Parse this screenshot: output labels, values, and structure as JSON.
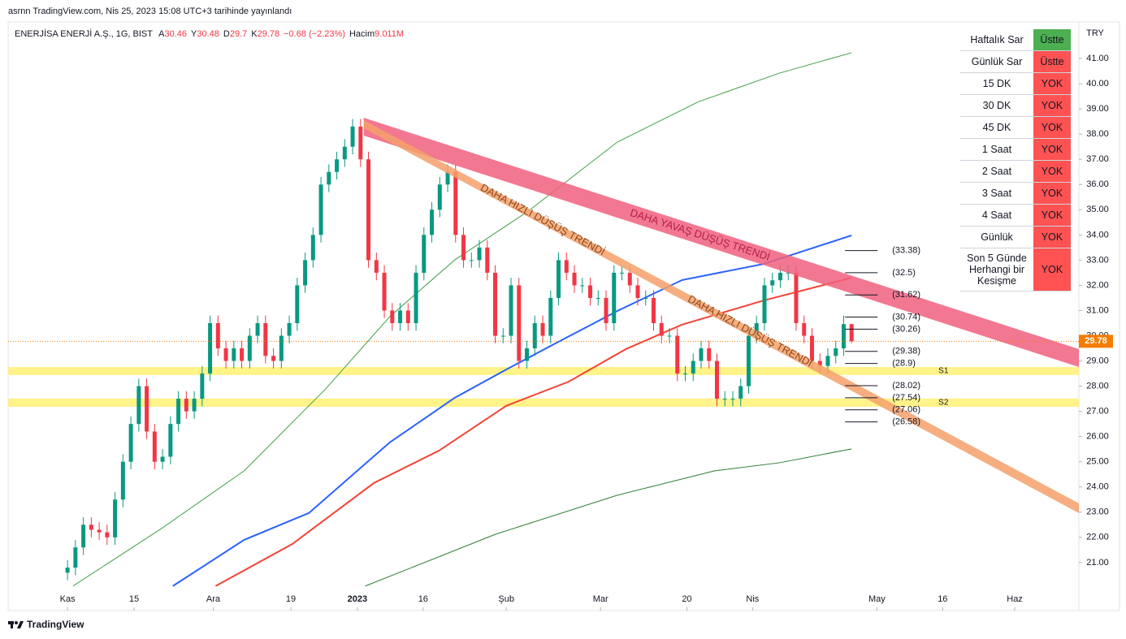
{
  "chart_data": {
    "type": "candlestick",
    "publisher": "asrnn TradingView.com, Nis 25, 2023 15:08 UTC+3 tarihinde yayınlandı",
    "symbol": "ENERJİSA ENERJİ A.Ş., 1G, BIST",
    "legend_letters": [
      "A",
      "Y",
      "D",
      "K"
    ],
    "change": "−0.68 (−2.23%)",
    "volume_label": "Hacim",
    "volume": "9.011M",
    "currency": "TRY",
    "brand": "TradingView",
    "up_color": "#089981",
    "down_color": "#f23645",
    "xlim": [
      -7.5,
      127.7
    ],
    "ylim": [
      19.9,
      42.42
    ],
    "xticks": [
      {
        "value": 0,
        "label": "Kas"
      },
      {
        "value": 8.4,
        "label": "15"
      },
      {
        "value": 18.4,
        "label": "Ara"
      },
      {
        "value": 28.2,
        "label": "19"
      },
      {
        "value": 36.6,
        "label": "2023"
      },
      {
        "value": 44.9,
        "label": "16"
      },
      {
        "value": 55.4,
        "label": "Şub"
      },
      {
        "value": 67.3,
        "label": "Mar"
      },
      {
        "value": 78.2,
        "label": "20"
      },
      {
        "value": 86.5,
        "label": "Nis"
      },
      {
        "value": 102.2,
        "label": "May"
      },
      {
        "value": 110.5,
        "label": "16"
      },
      {
        "value": 119.6,
        "label": "Haz"
      }
    ],
    "yticks": [
      {
        "value": 21,
        "label": "21.00"
      },
      {
        "value": 22,
        "label": "22.00"
      },
      {
        "value": 23,
        "label": "23.00"
      },
      {
        "value": 24,
        "label": "24.00"
      },
      {
        "value": 25,
        "label": "25.00"
      },
      {
        "value": 26,
        "label": "26.00"
      },
      {
        "value": 27,
        "label": "27.00"
      },
      {
        "value": 28,
        "label": "28.00"
      },
      {
        "value": 29,
        "label": "29.00"
      },
      {
        "value": 30,
        "label": "30.00"
      },
      {
        "value": 31,
        "label": "31.00"
      },
      {
        "value": 32,
        "label": "32.00"
      },
      {
        "value": 33,
        "label": "33.00"
      },
      {
        "value": 34,
        "label": "34.00"
      },
      {
        "value": 35,
        "label": "35.00"
      },
      {
        "value": 36,
        "label": "36.00"
      },
      {
        "value": 37,
        "label": "37.00"
      },
      {
        "value": 38,
        "label": "38.00"
      },
      {
        "value": 39,
        "label": "39.00"
      },
      {
        "value": 40,
        "label": "40.00"
      },
      {
        "value": 41,
        "label": "41.00"
      }
    ],
    "open": [
      20.6,
      20.8,
      21.6,
      22.5,
      22.3,
      22.2,
      22.0,
      23.5,
      25.0,
      26.5,
      28.0,
      26.2,
      25.0,
      25.2,
      26.5,
      27.5,
      27.0,
      27.5,
      28.5,
      30.5,
      29.5,
      29.0,
      29.5,
      29.0,
      30.0,
      30.5,
      29.2,
      29.0,
      30.0,
      30.5,
      32.0,
      33.0,
      34.0,
      36.0,
      36.5,
      37.0,
      37.5,
      38.3,
      37.0,
      33.0,
      32.5,
      31.0,
      30.5,
      31.0,
      30.5,
      32.5,
      34.0,
      35.0,
      36.0,
      36.5,
      34.0,
      33.0,
      33.0,
      33.5,
      32.5,
      30.0,
      30.0,
      32.0,
      29.0,
      29.5,
      30.5,
      30.0,
      31.5,
      33.0,
      32.5,
      32.0,
      32.0,
      31.5,
      31.5,
      30.5,
      32.5,
      32.5,
      32.0,
      31.5,
      31.5,
      30.5,
      30.0,
      30.0,
      28.5,
      28.5,
      29.0,
      29.5,
      29.0,
      27.5,
      27.5,
      27.5,
      28.0,
      30.0,
      30.5,
      32.0,
      32.2,
      32.5,
      32.5,
      30.5,
      30.0,
      29.0,
      28.8,
      29.2,
      29.5,
      30.46
    ],
    "high": [
      21.1,
      21.9,
      22.8,
      22.8,
      22.6,
      22.5,
      23.8,
      25.3,
      26.8,
      28.3,
      28.3,
      26.5,
      25.5,
      26.8,
      27.8,
      27.8,
      27.8,
      28.8,
      30.8,
      30.8,
      29.8,
      29.8,
      29.8,
      30.3,
      30.8,
      30.8,
      29.5,
      30.3,
      30.8,
      32.3,
      33.3,
      34.3,
      36.3,
      36.8,
      37.3,
      37.8,
      38.6,
      38.6,
      37.3,
      33.3,
      32.8,
      31.3,
      31.3,
      31.3,
      32.8,
      34.3,
      35.3,
      36.3,
      36.8,
      36.8,
      34.3,
      33.3,
      33.8,
      33.8,
      32.8,
      30.3,
      32.3,
      32.3,
      29.8,
      30.8,
      30.8,
      31.8,
      33.3,
      33.3,
      32.8,
      32.3,
      32.3,
      31.8,
      31.8,
      32.8,
      32.8,
      32.8,
      32.3,
      31.8,
      31.8,
      30.8,
      30.3,
      30.3,
      28.8,
      29.3,
      29.8,
      29.8,
      29.3,
      27.8,
      27.8,
      28.3,
      30.3,
      30.8,
      32.3,
      32.5,
      32.8,
      32.8,
      32.8,
      30.8,
      30.3,
      29.3,
      29.5,
      29.8,
      30.8,
      30.48
    ],
    "low": [
      20.3,
      20.5,
      21.3,
      22.0,
      21.9,
      21.7,
      21.7,
      23.2,
      24.7,
      26.2,
      25.9,
      24.7,
      24.7,
      24.9,
      26.2,
      26.7,
      26.7,
      27.2,
      28.2,
      29.2,
      28.7,
      28.7,
      28.7,
      28.7,
      29.7,
      28.9,
      28.7,
      28.7,
      29.7,
      30.2,
      31.7,
      32.7,
      33.7,
      35.7,
      36.2,
      36.7,
      37.2,
      36.7,
      32.7,
      32.2,
      30.7,
      30.2,
      30.2,
      30.2,
      30.2,
      32.2,
      33.7,
      34.7,
      35.7,
      33.7,
      32.7,
      32.7,
      32.7,
      32.2,
      29.7,
      29.7,
      29.7,
      28.7,
      28.7,
      29.2,
      29.7,
      29.7,
      31.2,
      32.2,
      31.7,
      31.7,
      31.2,
      31.2,
      30.2,
      30.2,
      32.2,
      31.7,
      31.2,
      31.2,
      30.2,
      29.7,
      29.7,
      28.2,
      28.2,
      28.2,
      28.7,
      28.7,
      27.2,
      27.2,
      27.2,
      27.2,
      27.7,
      29.7,
      30.2,
      31.7,
      31.9,
      32.2,
      30.2,
      29.7,
      28.7,
      28.5,
      28.5,
      28.9,
      29.2,
      29.7
    ],
    "close": [
      20.8,
      21.6,
      22.5,
      22.3,
      22.2,
      22.0,
      23.5,
      25.0,
      26.5,
      28.0,
      26.2,
      25.0,
      25.2,
      26.5,
      27.5,
      27.0,
      27.5,
      28.5,
      30.5,
      29.5,
      29.0,
      29.5,
      29.0,
      30.0,
      30.5,
      29.2,
      29.0,
      30.0,
      30.5,
      32.0,
      33.0,
      34.0,
      36.0,
      36.5,
      37.0,
      37.5,
      38.3,
      37.0,
      33.0,
      32.5,
      31.0,
      30.5,
      31.0,
      30.5,
      32.5,
      34.0,
      35.0,
      36.0,
      36.5,
      34.0,
      33.0,
      33.0,
      33.5,
      32.5,
      30.0,
      30.0,
      32.0,
      29.0,
      29.5,
      30.5,
      30.0,
      31.5,
      33.0,
      32.5,
      32.0,
      32.0,
      31.5,
      31.5,
      30.5,
      32.5,
      32.5,
      32.0,
      31.5,
      31.5,
      30.5,
      30.0,
      30.0,
      28.5,
      28.5,
      29.0,
      29.5,
      29.0,
      27.5,
      27.5,
      27.5,
      28.0,
      30.0,
      30.5,
      32.0,
      32.2,
      32.5,
      32.5,
      30.5,
      30.0,
      29.0,
      28.8,
      29.2,
      29.5,
      30.46,
      29.78
    ],
    "last_price_color": "#f57c00",
    "lines": [
      {
        "color": "#2962ff",
        "width": 2,
        "x": [
          13.3,
          22.3,
          30.5,
          40.7,
          48.9,
          55.4,
          61.2,
          69.4,
          77.6,
          87.9,
          99
        ],
        "y": [
          20.07,
          21.9,
          22.97,
          25.77,
          27.54,
          28.66,
          29.63,
          30.98,
          32.21,
          32.85,
          33.98
        ]
      },
      {
        "color": "#f44336",
        "width": 2,
        "x": [
          18.7,
          28.4,
          38.7,
          46.9,
          55.4,
          63.3,
          70.5,
          77.6,
          87.9,
          99
        ],
        "y": [
          20.07,
          21.74,
          24.16,
          25.44,
          27.22,
          28.18,
          29.47,
          30.44,
          31.4,
          32.3
        ]
      },
      {
        "color": "#43a047",
        "width": 1,
        "x": [
          0.7,
          12,
          22.3,
          32.5,
          40.7,
          48.9,
          58.2,
          69.4,
          79.7,
          89.9,
          99
        ],
        "y": [
          20.07,
          22.38,
          24.64,
          27.86,
          30.76,
          33.01,
          34.95,
          37.68,
          39.29,
          40.42,
          41.23
        ]
      },
      {
        "color": "#2e7d32",
        "width": 1,
        "x": [
          37.6,
          54.1,
          69.4,
          81.7,
          89.9,
          99
        ],
        "y": [
          20.07,
          22.13,
          23.67,
          24.64,
          24.96,
          25.51
        ]
      }
    ],
    "bands": [
      {
        "labels": [
          "DAHA YAVAŞ DÜŞÜŞ TRENDİ"
        ],
        "color": "#f0607e",
        "text_color": "#b71c4a",
        "x": [
          37.4,
          127.7
        ],
        "upper": [
          38.65,
          29.47
        ],
        "lower": [
          37.94,
          28.76
        ]
      },
      {
        "labels": [
          "DAHA HIZLI DÜŞÜŞ TRENDİ",
          "DAHA HIZLI DÜŞÜŞ TRENDİ"
        ],
        "color": "#f4a06a",
        "text_color": "#8d4a1d",
        "x": [
          37.4,
          127.7
        ],
        "upper": [
          38.55,
          23.35
        ],
        "lower": [
          38.23,
          22.96
        ]
      }
    ],
    "zones": [
      {
        "label": "S1",
        "color": "#fff176",
        "range": [
          28.44,
          28.76
        ]
      },
      {
        "label": "S2",
        "color": "#fff176",
        "range": [
          27.18,
          27.51
        ]
      }
    ],
    "levels": [
      33.38,
      32.5,
      31.62,
      30.74,
      30.26,
      29.38,
      28.9,
      28.02,
      27.54,
      27.06,
      26.58
    ],
    "level_labels": [
      "(33.38)",
      "(32.5)",
      "(31.62)",
      "(30.74)",
      "(30.26)",
      "(29.38)",
      "(28.9)",
      "(28.02)",
      "(27.54)",
      "(27.06)",
      "(26.58)"
    ]
  },
  "table": {
    "rows": [
      {
        "label": "Haftalık Sar",
        "status": "Üstte",
        "color": "#4caf50"
      },
      {
        "label": "Günlük Sar",
        "status": "Üstte",
        "color": "#ff5252"
      },
      {
        "label": "15 DK",
        "status": "YOK",
        "color": "#ff5252"
      },
      {
        "label": "30 DK",
        "status": "YOK",
        "color": "#ff5252"
      },
      {
        "label": "45 DK",
        "status": "YOK",
        "color": "#ff5252"
      },
      {
        "label": "1 Saat",
        "status": "YOK",
        "color": "#ff5252"
      },
      {
        "label": "2 Saat",
        "status": "YOK",
        "color": "#ff5252"
      },
      {
        "label": "3 Saat",
        "status": "YOK",
        "color": "#ff5252"
      },
      {
        "label": "4 Saat",
        "status": "YOK",
        "color": "#ff5252"
      },
      {
        "label": "Günlük",
        "status": "YOK",
        "color": "#ff5252"
      },
      {
        "label": "Son 5 Günde Herhangi bir Kesişme",
        "status": "YOK",
        "color": "#ff5252"
      }
    ]
  }
}
